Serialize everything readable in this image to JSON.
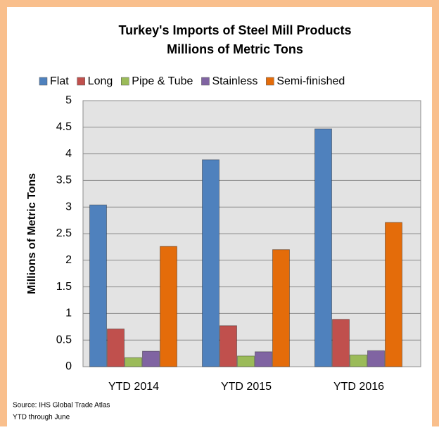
{
  "chart_data": {
    "type": "bar",
    "title": "Turkey's Imports of Steel Mill Products",
    "subtitle": "Millions of Metric Tons",
    "y_label": "Millions of Metric Tons",
    "categories": [
      "YTD 2014",
      "YTD 2015",
      "YTD 2016"
    ],
    "series": [
      {
        "name": "Flat",
        "color": "#4f81bd",
        "values": [
          3.04,
          3.89,
          4.47
        ]
      },
      {
        "name": "Long",
        "color": "#c0504d",
        "values": [
          0.71,
          0.77,
          0.89
        ]
      },
      {
        "name": "Pipe & Tube",
        "color": "#9bbb59",
        "values": [
          0.17,
          0.2,
          0.22
        ]
      },
      {
        "name": "Stainless",
        "color": "#8064a2",
        "values": [
          0.29,
          0.28,
          0.3
        ]
      },
      {
        "name": "Semi-finished",
        "color": "#e46c0a",
        "values": [
          2.26,
          2.2,
          2.71
        ]
      }
    ],
    "ylim": [
      0,
      5
    ],
    "yticks": [
      0,
      0.5,
      1,
      1.5,
      2,
      2.5,
      3,
      3.5,
      4,
      4.5,
      5
    ],
    "grid": true,
    "legend": "top",
    "notes": [
      "Source: IHS Global Trade Atlas",
      "YTD through June"
    ]
  }
}
